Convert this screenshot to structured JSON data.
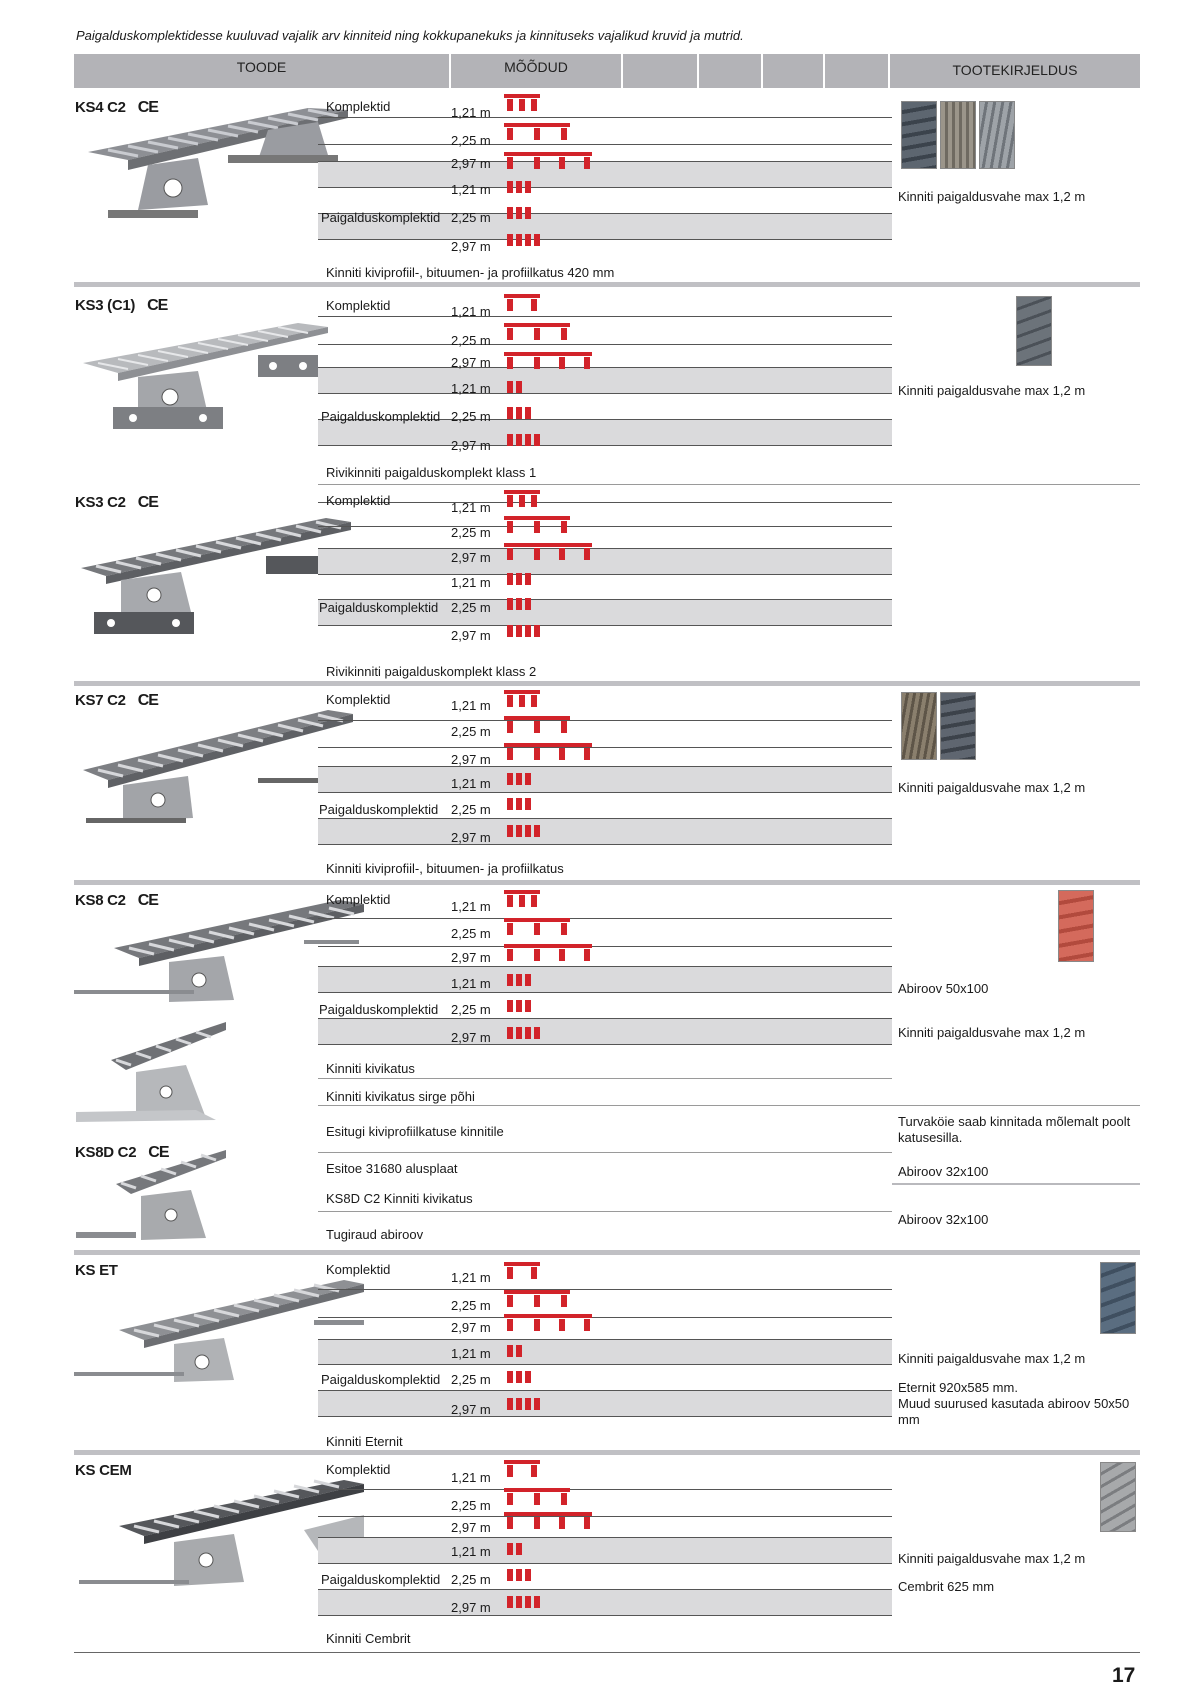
{
  "intro": "Paigalduskomplektidesse kuuluvad vajalik arv kinniteid ning kokkupanekuks ja kinnituseks vajalikud kruvid ja mutrid.",
  "header": {
    "toode": "TOODE",
    "moodud": "MÕÕDUD",
    "kirjeldus": "TOOTEKIRJELDUS"
  },
  "ce_mark": "CE",
  "common": {
    "komplektid": "Komplektid",
    "paigalduskomplektid": "Paigalduskomplektid",
    "m121": "1,21 m",
    "m225": "2,25 m",
    "m297": "2,97 m",
    "max12": "Kinniti paigaldusvahe max 1,2 m"
  },
  "ks4": {
    "model": "KS4 C2",
    "note": "Kinniti kiviprofiil-, bituumen- ja profiilkatus 420 mm"
  },
  "ks3c1": {
    "model": "KS3 (C1)",
    "note": "Rivikinniti paigalduskomplekt klass 1"
  },
  "ks3c2": {
    "model": "KS3 C2",
    "note": "Rivikinniti paigalduskomplekt klass 2"
  },
  "ks7": {
    "model": "KS7 C2",
    "note": "Kinniti kiviprofiil-, bituumen- ja profiilkatus"
  },
  "ks8": {
    "model": "KS8 C2",
    "desc1": "Abiroov 50x100",
    "rows": [
      "Kinniti kivikatus",
      "Kinniti kivikatus sirge põhi",
      "Esitugi kiviprofiilkatuse kinnitile",
      "Esitoe 31680 alusplaat",
      "KS8D C2 Kinniti kivikatus",
      "Tugiraud abiroov"
    ],
    "desc_turva": "Turvaköie saab kinnitada mõlemalt poolt katusesilla.",
    "desc_abiroov32a": "Abiroov 32x100",
    "desc_abiroov32b": "Abiroov 32x100"
  },
  "ks8d": {
    "model": "KS8D C2"
  },
  "kset": {
    "model": "KS ET",
    "note": "Kinniti Eternit",
    "desc_eternit": "Eternit 920x585 mm.",
    "desc_muud": "Muud suurused kasutada abiroov 50x50 mm"
  },
  "kscem": {
    "model": "KS CEM",
    "note": "Kinniti Cembrit",
    "desc_cembrit": "Cembrit 625 mm"
  },
  "page_number": "17",
  "colors": {
    "red": "#d2232a",
    "band": "#dadadc",
    "header": "#b3b3b7"
  }
}
